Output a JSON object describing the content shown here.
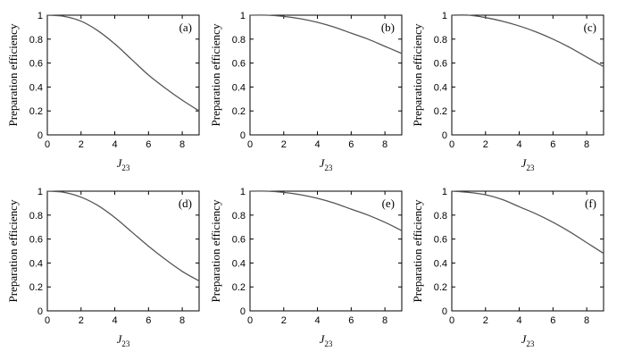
{
  "chart_data": [
    {
      "type": "line",
      "panel_label": "(a)",
      "xlabel": "J",
      "xlabel_sub": "23",
      "ylabel": "Preparation efficiency",
      "xlim": [
        0,
        9
      ],
      "ylim": [
        0,
        1
      ],
      "xticks": [
        "0",
        "2",
        "4",
        "6",
        "8"
      ],
      "yticks": [
        "0",
        "0.2",
        "0.4",
        "0.6",
        "0.8",
        "1"
      ],
      "series": [
        {
          "x": [
            0,
            1,
            2,
            3,
            4,
            5,
            6,
            7,
            8,
            9
          ],
          "y": [
            1.0,
            0.99,
            0.95,
            0.87,
            0.76,
            0.63,
            0.5,
            0.39,
            0.29,
            0.2
          ]
        }
      ]
    },
    {
      "type": "line",
      "panel_label": "(b)",
      "xlabel": "J",
      "xlabel_sub": "23",
      "ylabel": "Preparation efficiency",
      "xlim": [
        0,
        9
      ],
      "ylim": [
        0,
        1
      ],
      "xticks": [
        "0",
        "2",
        "4",
        "6",
        "8"
      ],
      "yticks": [
        "0",
        "0.2",
        "0.4",
        "0.6",
        "0.8",
        "1"
      ],
      "series": [
        {
          "x": [
            0,
            1,
            2,
            3,
            4,
            5,
            6,
            7,
            8,
            9
          ],
          "y": [
            1.0,
            1.0,
            0.99,
            0.97,
            0.94,
            0.9,
            0.85,
            0.8,
            0.74,
            0.68
          ]
        }
      ]
    },
    {
      "type": "line",
      "panel_label": "(c)",
      "xlabel": "J",
      "xlabel_sub": "23",
      "ylabel": "Preparation efficiency",
      "xlim": [
        0,
        9
      ],
      "ylim": [
        0,
        1
      ],
      "xticks": [
        "0",
        "2",
        "4",
        "6",
        "8"
      ],
      "yticks": [
        "0",
        "0.2",
        "0.4",
        "0.6",
        "0.8",
        "1"
      ],
      "series": [
        {
          "x": [
            0,
            1,
            2,
            3,
            4,
            5,
            6,
            7,
            8,
            9
          ],
          "y": [
            1.0,
            1.0,
            0.98,
            0.95,
            0.91,
            0.86,
            0.8,
            0.73,
            0.65,
            0.57
          ]
        }
      ]
    },
    {
      "type": "line",
      "panel_label": "(d)",
      "xlabel": "J",
      "xlabel_sub": "23",
      "ylabel": "Preparation efficiency",
      "xlim": [
        0,
        9
      ],
      "ylim": [
        0,
        1
      ],
      "xticks": [
        "0",
        "2",
        "4",
        "6",
        "8"
      ],
      "yticks": [
        "0",
        "0.2",
        "0.4",
        "0.6",
        "0.8",
        "1"
      ],
      "series": [
        {
          "x": [
            0,
            1,
            2,
            3,
            4,
            5,
            6,
            7,
            8,
            9
          ],
          "y": [
            1.0,
            0.99,
            0.95,
            0.88,
            0.78,
            0.66,
            0.54,
            0.43,
            0.33,
            0.25
          ]
        }
      ]
    },
    {
      "type": "line",
      "panel_label": "(e)",
      "xlabel": "J",
      "xlabel_sub": "23",
      "ylabel": "Preparation efficiency",
      "xlim": [
        0,
        9
      ],
      "ylim": [
        0,
        1
      ],
      "xticks": [
        "0",
        "2",
        "4",
        "6",
        "8"
      ],
      "yticks": [
        "0",
        "0.2",
        "0.4",
        "0.6",
        "0.8",
        "1"
      ],
      "series": [
        {
          "x": [
            0,
            1,
            2,
            3,
            4,
            5,
            6,
            7,
            8,
            9
          ],
          "y": [
            1.0,
            1.0,
            0.99,
            0.97,
            0.94,
            0.9,
            0.85,
            0.8,
            0.74,
            0.67
          ]
        }
      ]
    },
    {
      "type": "line",
      "panel_label": "(f)",
      "xlabel": "J",
      "xlabel_sub": "23",
      "ylabel": "Preparation efficiency",
      "xlim": [
        0,
        9
      ],
      "ylim": [
        0,
        1
      ],
      "xticks": [
        "0",
        "2",
        "4",
        "6",
        "8"
      ],
      "yticks": [
        "0",
        "0.2",
        "0.4",
        "0.6",
        "0.8",
        "1"
      ],
      "series": [
        {
          "x": [
            0,
            1,
            2,
            3,
            4,
            5,
            6,
            7,
            8,
            9
          ],
          "y": [
            1.0,
            0.99,
            0.97,
            0.93,
            0.87,
            0.81,
            0.74,
            0.66,
            0.57,
            0.48
          ]
        }
      ]
    }
  ]
}
